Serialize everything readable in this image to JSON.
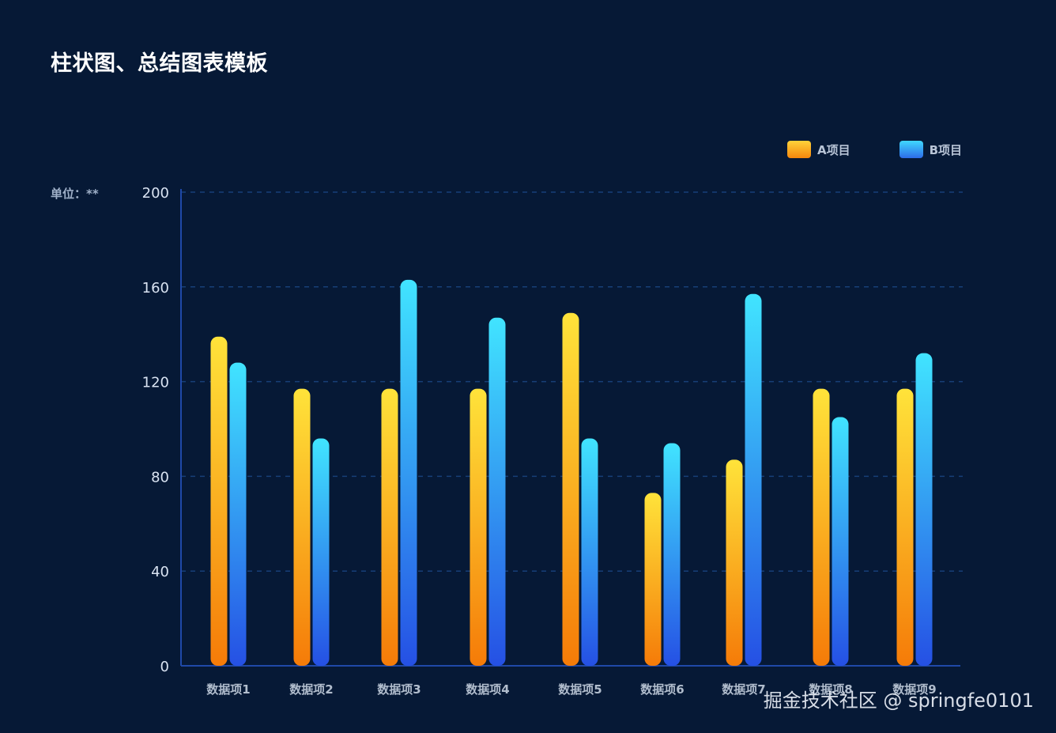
{
  "title": "柱状图、总结图表模板",
  "unit_label": "单位：**",
  "watermark": "掘金技术社区 @ springfe0101",
  "colors": {
    "background": "#061936",
    "axis": "#1f49a8",
    "grid": "#173f78",
    "seriesA_top": "#ffe33a",
    "seriesA_bottom": "#f57b08",
    "seriesB_top": "#41e4ff",
    "seriesB_bottom": "#2550e4"
  },
  "chart_data": {
    "type": "bar",
    "title": "柱状图、总结图表模板",
    "ylabel": "单位：**",
    "ylim": [
      0,
      200
    ],
    "yticks": [
      0,
      40,
      80,
      120,
      160,
      200
    ],
    "grid": true,
    "legend_position": "top-right",
    "categories": [
      "数据项1",
      "数据项2",
      "数据项3",
      "数据项4",
      "数据项5",
      "数据项6",
      "数据项7",
      "数据项8",
      "数据项9"
    ],
    "series": [
      {
        "name": "A项目",
        "values": [
          139,
          117,
          117,
          117,
          149,
          73,
          87,
          117,
          117
        ]
      },
      {
        "name": "B项目",
        "values": [
          128,
          96,
          163,
          147,
          96,
          94,
          157,
          105,
          132
        ]
      }
    ]
  }
}
